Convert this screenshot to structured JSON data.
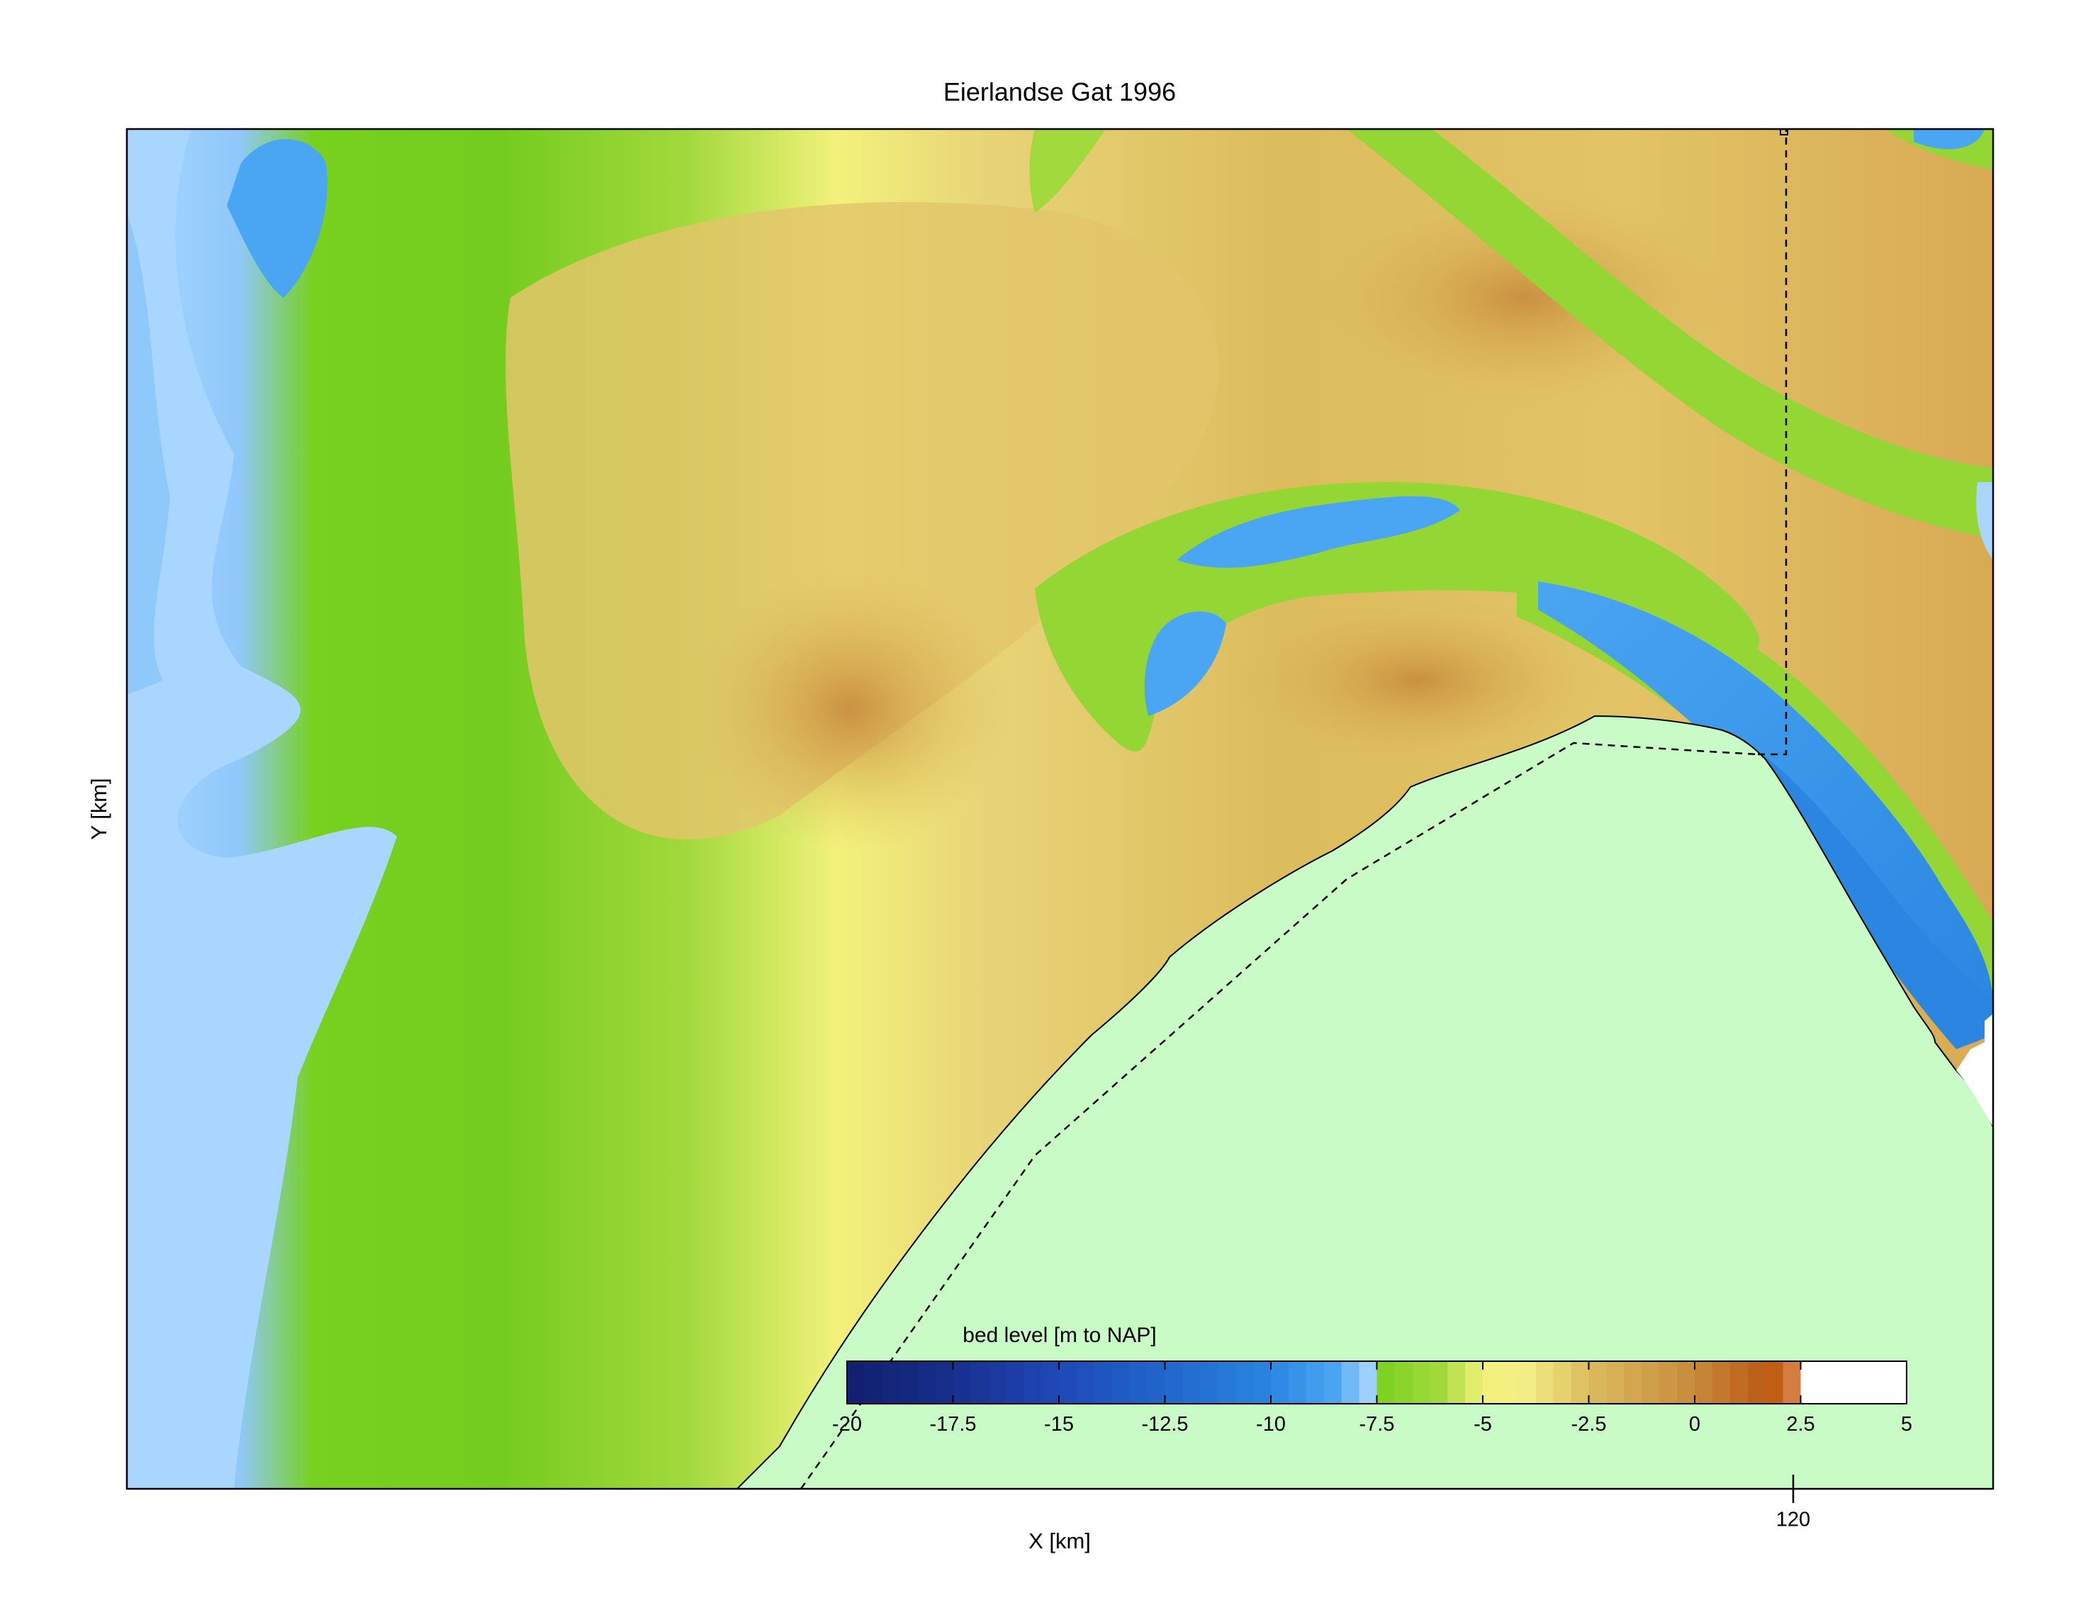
{
  "figure": {
    "title": "Eierlandse Gat 1996",
    "xlabel": "X [km]",
    "ylabel": "Y [km]"
  },
  "chart_data": {
    "type": "heatmap",
    "title": "Eierlandse Gat 1996",
    "xlabel": "X [km]",
    "ylabel": "Y [km]",
    "x_ticks": [
      "120"
    ],
    "y_ticks": [],
    "colorbar": {
      "label": "bed level [m to NAP]",
      "range": [
        -20,
        5
      ],
      "tick_values": [
        -20,
        -17.5,
        -15,
        -12.5,
        -10,
        -7.5,
        -5,
        -2.5,
        0,
        2.5,
        5
      ],
      "tick_labels": [
        "-20",
        "-17.5",
        "-15",
        "-12.5",
        "-10",
        "-7.5",
        "-5",
        "-2.5",
        "0",
        "2.5",
        "5"
      ],
      "stops": [
        {
          "value": -20,
          "color": "#101f6e"
        },
        {
          "value": -17.5,
          "color": "#182f8c"
        },
        {
          "value": -15,
          "color": "#1f49b8"
        },
        {
          "value": -12.5,
          "color": "#2066cc"
        },
        {
          "value": -10,
          "color": "#2a86e0"
        },
        {
          "value": -8.5,
          "color": "#4aa6f2"
        },
        {
          "value": -7.6,
          "color": "#a8d6ff"
        },
        {
          "value": -7.5,
          "color": "#78d11e"
        },
        {
          "value": -6,
          "color": "#a2d93c"
        },
        {
          "value": -5,
          "color": "#f2f27a"
        },
        {
          "value": -4,
          "color": "#f3ee86"
        },
        {
          "value": -2.5,
          "color": "#dcbc5c"
        },
        {
          "value": 0,
          "color": "#c88a3c"
        },
        {
          "value": 1.5,
          "color": "#bc6018"
        },
        {
          "value": 2.2,
          "color": "#c85a10"
        },
        {
          "value": 2.5,
          "color": "#f2c8b0"
        },
        {
          "value": 2.6,
          "color": "#ffffff"
        },
        {
          "value": 5,
          "color": "#ffffff"
        }
      ]
    },
    "land_color": "#c9fbc6",
    "grid": false
  }
}
